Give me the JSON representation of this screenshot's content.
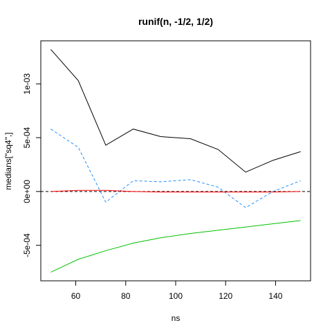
{
  "chart_data": {
    "type": "line",
    "title": "runif(n, -1/2, 1/2)",
    "xlabel": "ns",
    "ylabel": "medians[\"sq4\",]",
    "xlim": [
      46,
      154
    ],
    "ylim": [
      -0.00083,
      0.0014
    ],
    "x": [
      50,
      61,
      72,
      83,
      94,
      106,
      117,
      128,
      139,
      150
    ],
    "x_ticks": [
      60,
      80,
      100,
      120,
      140
    ],
    "x_tick_labels": [
      "60",
      "80",
      "100",
      "120",
      "140"
    ],
    "y_ticks": [
      0.001,
      0.0005,
      0,
      -0.0005
    ],
    "y_tick_labels": [
      "1e-03",
      "5e-04",
      "0e+00",
      "-5e-04"
    ],
    "hline": {
      "y": 0,
      "color": "#000000",
      "style": "dashed"
    },
    "series": [
      {
        "color": "#000000",
        "style": "solid",
        "values": [
          0.00132,
          0.00103,
          0.00043,
          0.00058,
          0.00051,
          0.00049,
          0.00039,
          0.00018,
          0.00029,
          0.00037
        ]
      },
      {
        "color": "#1e90ff",
        "style": "dashed",
        "values": [
          0.00058,
          0.00041,
          -0.0001,
          0.0001,
          9e-05,
          0.00011,
          4e-05,
          -0.00015,
          0.0,
          0.0001
        ]
      },
      {
        "color": "#ff0000",
        "style": "solid",
        "values": [
          0.0,
          1e-05,
          1e-05,
          0.0,
          -5e-06,
          -5e-06,
          -5e-06,
          -5e-06,
          -5e-06,
          0.0
        ]
      },
      {
        "color": "#00c000",
        "style": "solid",
        "values": [
          -0.00075,
          -0.00063,
          -0.00055,
          -0.00048,
          -0.00043,
          -0.00039,
          -0.00036,
          -0.00033,
          -0.0003,
          -0.00027
        ]
      }
    ]
  }
}
